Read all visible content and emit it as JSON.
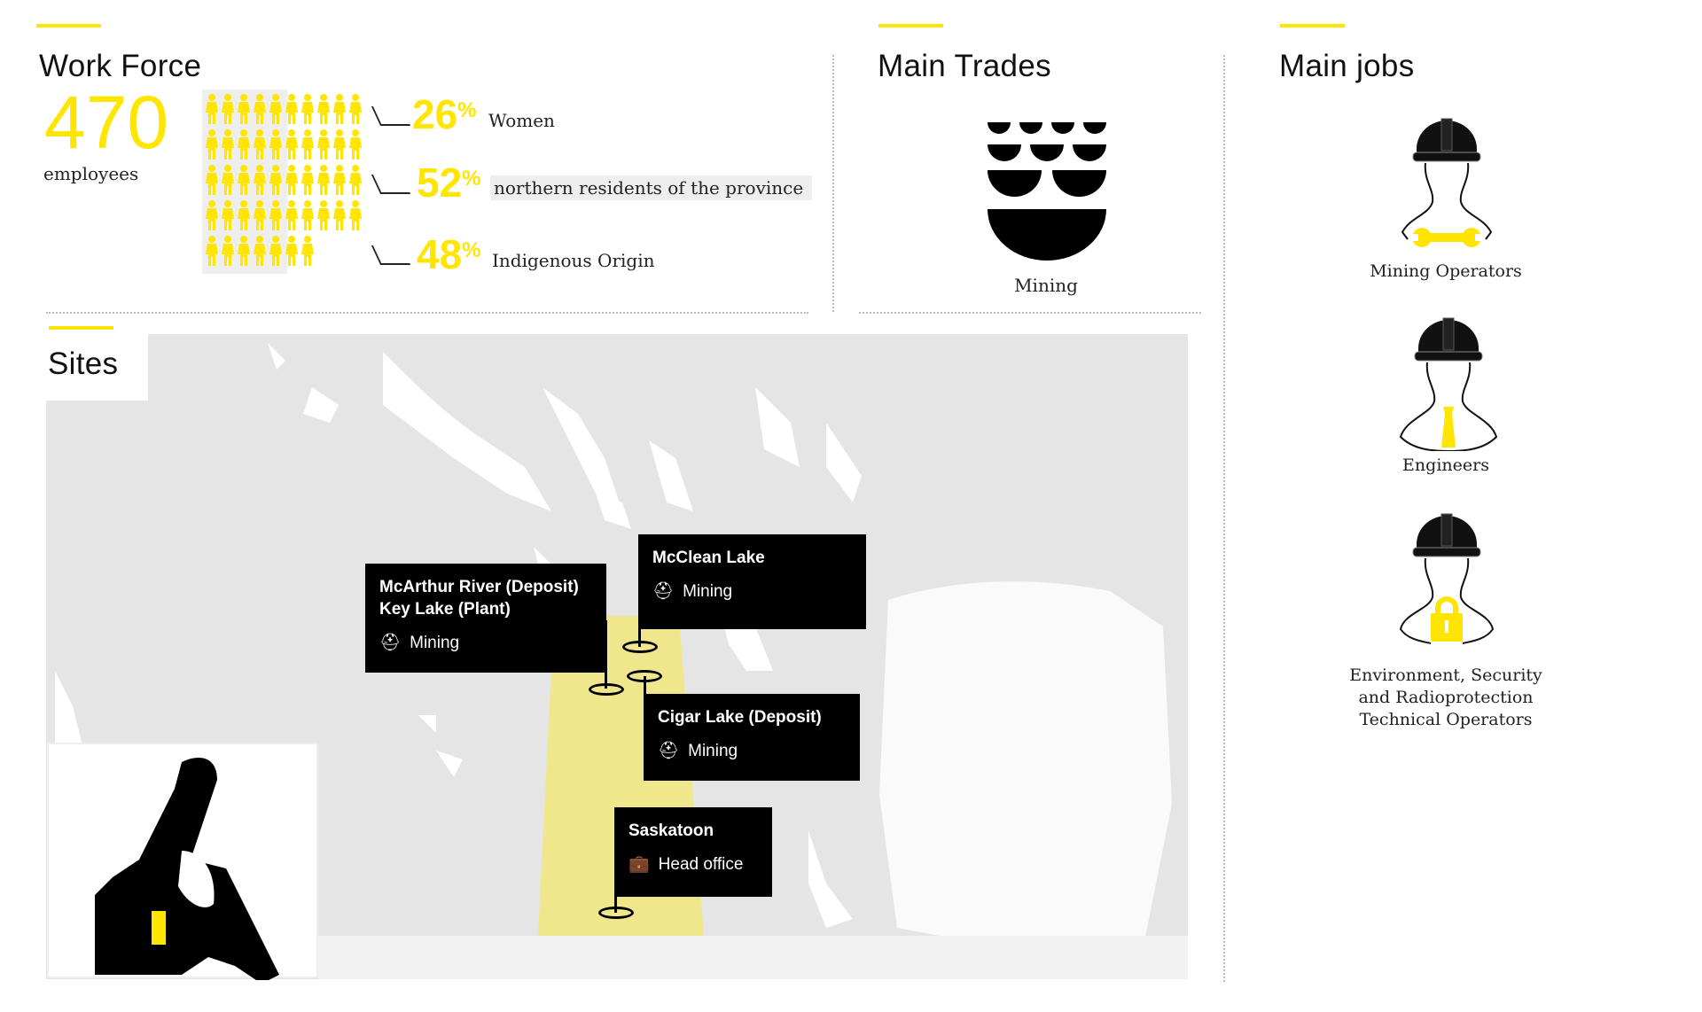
{
  "workforce": {
    "title": "Work Force",
    "count": "470",
    "count_label": "employees",
    "icons_total": 47,
    "stats": [
      {
        "value": "26",
        "unit": "%",
        "label": "Women"
      },
      {
        "value": "52",
        "unit": "%",
        "label": "northern residents of the province"
      },
      {
        "value": "48",
        "unit": "%",
        "label": "Indigenous Origin"
      }
    ]
  },
  "trades": {
    "title": "Main Trades",
    "items": [
      {
        "label": "Mining",
        "icon": "mining-icon"
      }
    ]
  },
  "jobs": {
    "title": "Main jobs",
    "items": [
      {
        "label": "Mining Operators",
        "icon": "worker-wrench-icon"
      },
      {
        "label": "Engineers",
        "icon": "worker-tie-icon"
      },
      {
        "label_lines": [
          "Environment, Security",
          "and Radioprotection",
          "Technical Operators"
        ],
        "icon": "worker-lock-icon"
      }
    ]
  },
  "sites": {
    "title": "Sites",
    "markers": [
      {
        "name_lines": [
          "McArthur River (Deposit)",
          "Key Lake (Plant)"
        ],
        "type": "Mining",
        "icon": "miner-helmet-icon"
      },
      {
        "name_lines": [
          "McClean Lake"
        ],
        "type": "Mining",
        "icon": "miner-helmet-icon"
      },
      {
        "name_lines": [
          "Cigar Lake (Deposit)"
        ],
        "type": "Mining",
        "icon": "miner-helmet-icon"
      },
      {
        "name_lines": [
          "Saskatoon"
        ],
        "type": "Head office",
        "icon": "briefcase-icon"
      }
    ]
  },
  "colors": {
    "accent": "#ffe500",
    "region": "#f0e68c",
    "land": "#e5e5e5"
  }
}
